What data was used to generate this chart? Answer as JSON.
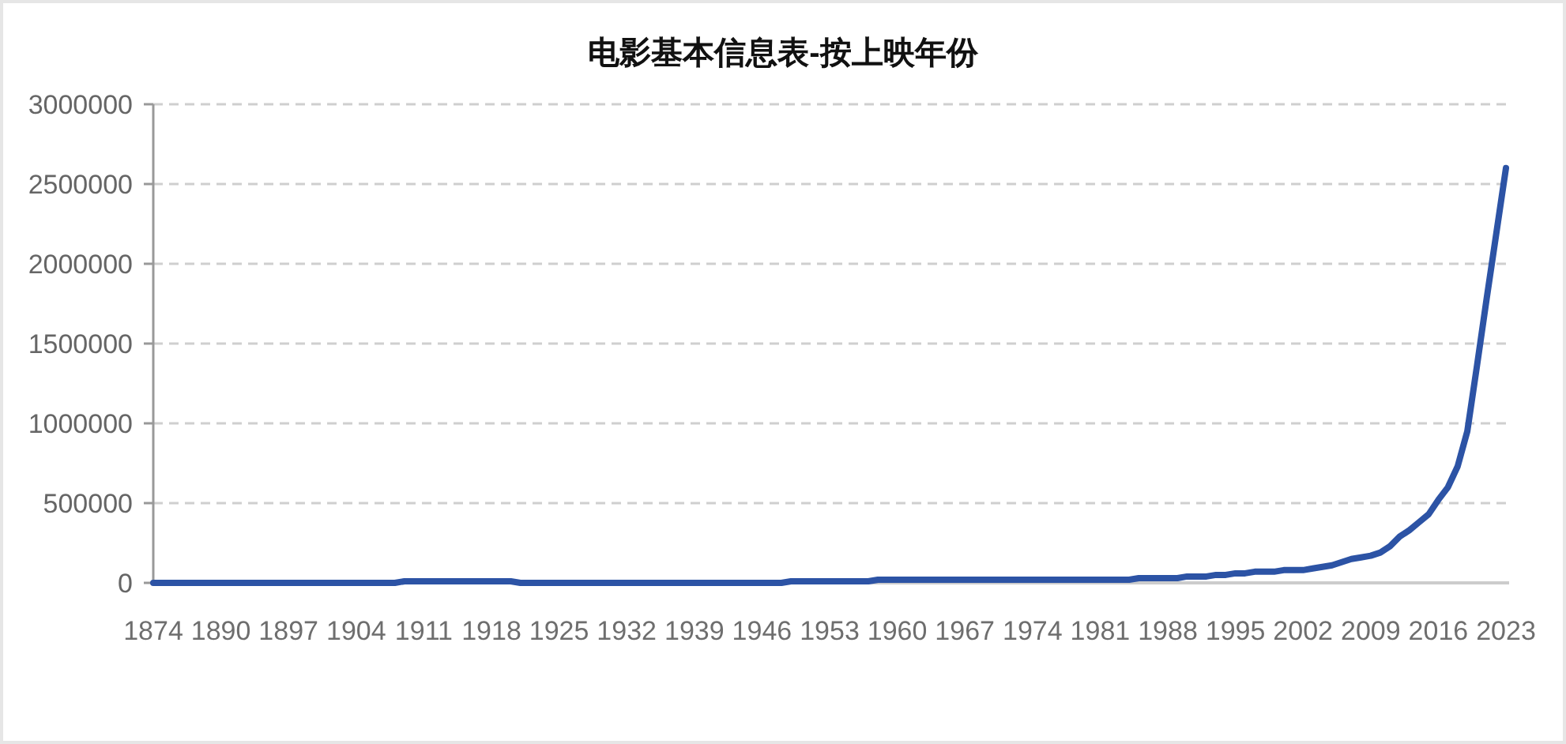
{
  "chart_data": {
    "type": "line",
    "title": "电影基本信息表-按上映年份",
    "categories": [
      "1874",
      null,
      null,
      null,
      null,
      null,
      null,
      "1890",
      null,
      null,
      null,
      null,
      null,
      null,
      "1897",
      null,
      null,
      null,
      null,
      null,
      null,
      "1904",
      null,
      null,
      null,
      null,
      null,
      null,
      "1911",
      null,
      null,
      null,
      null,
      null,
      null,
      "1918",
      null,
      null,
      null,
      null,
      null,
      null,
      "1925",
      null,
      null,
      null,
      null,
      null,
      null,
      "1932",
      null,
      null,
      null,
      null,
      null,
      null,
      "1939",
      null,
      null,
      null,
      null,
      null,
      null,
      "1946",
      null,
      null,
      null,
      null,
      null,
      null,
      "1953",
      null,
      null,
      null,
      null,
      null,
      null,
      "1960",
      null,
      null,
      null,
      null,
      null,
      null,
      "1967",
      null,
      null,
      null,
      null,
      null,
      null,
      "1974",
      null,
      null,
      null,
      null,
      null,
      null,
      "1981",
      null,
      null,
      null,
      null,
      null,
      null,
      "1988",
      null,
      null,
      null,
      null,
      null,
      null,
      "1995",
      null,
      null,
      null,
      null,
      null,
      null,
      "2002",
      null,
      null,
      null,
      null,
      null,
      null,
      "2009",
      null,
      null,
      null,
      null,
      null,
      null,
      "2016",
      null,
      null,
      null,
      null,
      null,
      null,
      "2023"
    ],
    "series": [
      {
        "color": "#2c53a5",
        "values": [
          0,
          0,
          0,
          0,
          0,
          0,
          0,
          0,
          0,
          0,
          0,
          0,
          0,
          0,
          0,
          0,
          0,
          0,
          0,
          0,
          0,
          0,
          0,
          0,
          0,
          0,
          10000,
          10000,
          10000,
          10000,
          10000,
          10000,
          10000,
          10000,
          10000,
          10000,
          10000,
          10000,
          0,
          0,
          0,
          0,
          0,
          0,
          0,
          0,
          0,
          0,
          0,
          0,
          0,
          0,
          0,
          0,
          0,
          0,
          0,
          0,
          0,
          0,
          0,
          0,
          0,
          0,
          0,
          0,
          10000,
          10000,
          10000,
          10000,
          10000,
          10000,
          10000,
          10000,
          10000,
          20000,
          20000,
          20000,
          20000,
          20000,
          20000,
          20000,
          20000,
          20000,
          20000,
          20000,
          20000,
          20000,
          20000,
          20000,
          20000,
          20000,
          20000,
          20000,
          20000,
          20000,
          20000,
          20000,
          20000,
          20000,
          20000,
          20000,
          30000,
          30000,
          30000,
          30000,
          30000,
          40000,
          40000,
          40000,
          50000,
          50000,
          60000,
          60000,
          70000,
          70000,
          70000,
          80000,
          80000,
          80000,
          90000,
          100000,
          110000,
          130000,
          150000,
          160000,
          170000,
          190000,
          230000,
          290000,
          330000,
          380000,
          430000,
          520000,
          600000,
          730000,
          950000,
          1360000,
          1780000,
          2190000,
          2600000
        ]
      }
    ],
    "ylim": [
      0,
      3000000
    ],
    "yticks": [
      0,
      500000,
      1000000,
      1500000,
      2000000,
      2500000,
      3000000
    ],
    "grid": "y"
  }
}
